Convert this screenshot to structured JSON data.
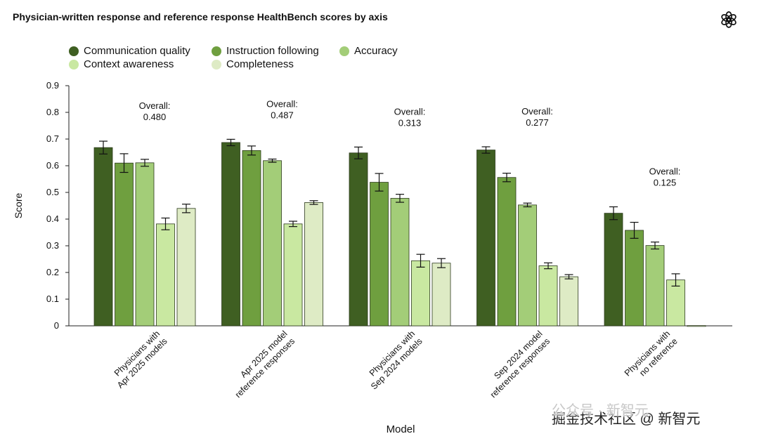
{
  "title": "Physician-written response and reference response HealthBench scores by axis",
  "logo_icon": "openai-logo-icon",
  "watermark": {
    "back_text": "公众号 · 新智元",
    "front_text": "掘金技术社区 @ 新智元"
  },
  "chart_data": {
    "type": "bar",
    "title": "Physician-written response and reference response HealthBench scores by axis",
    "xlabel": "Model",
    "ylabel": "Score",
    "ylim": [
      0,
      0.9
    ],
    "yticks": [
      "0",
      "0.1",
      "0.2",
      "0.3",
      "0.4",
      "0.5",
      "0.6",
      "0.7",
      "0.8",
      "0.9"
    ],
    "legend_position": "top-left",
    "categories": [
      [
        "Physicians with",
        "Apr 2025 models"
      ],
      [
        "Apr 2025 model",
        "reference responses"
      ],
      [
        "Physicians with",
        "Sep 2024 models"
      ],
      [
        "Sep 2024 model",
        "reference responses"
      ],
      [
        "Physicians with",
        "no reference"
      ]
    ],
    "overall": [
      {
        "label": "Overall:",
        "value": "0.480"
      },
      {
        "label": "Overall:",
        "value": "0.487"
      },
      {
        "label": "Overall:",
        "value": "0.313"
      },
      {
        "label": "Overall:",
        "value": "0.277"
      },
      {
        "label": "Overall:",
        "value": "0.125"
      }
    ],
    "series": [
      {
        "name": "Communication quality",
        "color": "#3f5f22",
        "values": [
          0.668,
          0.687,
          0.648,
          0.659,
          0.422
        ],
        "errors": [
          0.024,
          0.012,
          0.022,
          0.012,
          0.024
        ]
      },
      {
        "name": "Instruction following",
        "color": "#6f9f3f",
        "values": [
          0.61,
          0.657,
          0.538,
          0.556,
          0.358
        ],
        "errors": [
          0.035,
          0.017,
          0.033,
          0.016,
          0.03
        ]
      },
      {
        "name": "Accuracy",
        "color": "#a3cd78",
        "values": [
          0.611,
          0.619,
          0.478,
          0.453,
          0.301
        ],
        "errors": [
          0.013,
          0.006,
          0.015,
          0.007,
          0.013
        ]
      },
      {
        "name": "Context awareness",
        "color": "#c9e8a1",
        "values": [
          0.382,
          0.382,
          0.244,
          0.225,
          0.172
        ],
        "errors": [
          0.022,
          0.01,
          0.024,
          0.011,
          0.023
        ]
      },
      {
        "name": "Completeness",
        "color": "#deebc5",
        "values": [
          0.44,
          0.462,
          0.235,
          0.184,
          0.001
        ],
        "errors": [
          0.016,
          0.007,
          0.017,
          0.008,
          0
        ]
      }
    ]
  }
}
